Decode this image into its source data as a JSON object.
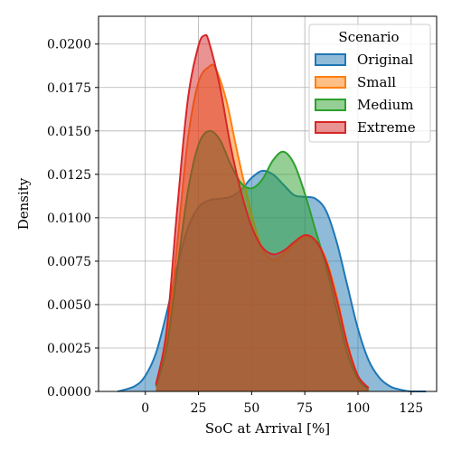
{
  "chart_data": {
    "type": "area",
    "chart_kind": "kde-density",
    "xlabel": "SoC at Arrival [%]",
    "ylabel": "Density",
    "xlim": [
      -22,
      137
    ],
    "ylim": [
      0,
      0.0216
    ],
    "x_ticks": [
      0,
      25,
      50,
      75,
      100,
      125
    ],
    "y_ticks": [
      0.0,
      0.0025,
      0.005,
      0.0075,
      0.01,
      0.0125,
      0.015,
      0.0175,
      0.02
    ],
    "x_tick_labels": [
      "0",
      "25",
      "50",
      "75",
      "100",
      "125"
    ],
    "y_tick_labels": [
      "0.0000",
      "0.0025",
      "0.0050",
      "0.0075",
      "0.0100",
      "0.0125",
      "0.0150",
      "0.0175",
      "0.0200"
    ],
    "grid": true,
    "legend": {
      "title": "Scenario",
      "placement": "top-right"
    },
    "series": [
      {
        "name": "Original",
        "color": "#1f77b4",
        "x": [
          -13,
          -5,
          0,
          5,
          10,
          15,
          20,
          25,
          30,
          35,
          40,
          45,
          50,
          55,
          60,
          65,
          70,
          75,
          80,
          85,
          90,
          95,
          100,
          105,
          110,
          115,
          120,
          125,
          132
        ],
        "y": [
          0.0,
          0.0003,
          0.0009,
          0.0022,
          0.0045,
          0.0072,
          0.0094,
          0.0106,
          0.011,
          0.0111,
          0.0112,
          0.0116,
          0.0123,
          0.0127,
          0.0125,
          0.0119,
          0.0113,
          0.0112,
          0.0111,
          0.0104,
          0.0086,
          0.0061,
          0.0036,
          0.0018,
          0.0008,
          0.0003,
          0.0001,
          0.0,
          0.0
        ]
      },
      {
        "name": "Small",
        "color": "#ff7f0e",
        "x": [
          5,
          10,
          15,
          20,
          25,
          30,
          33,
          38,
          42,
          45,
          50,
          55,
          60,
          65,
          70,
          75,
          80,
          85,
          90,
          95,
          100,
          105
        ],
        "y": [
          0.0003,
          0.0028,
          0.0085,
          0.0145,
          0.0178,
          0.0187,
          0.0186,
          0.0168,
          0.0145,
          0.0128,
          0.0102,
          0.0082,
          0.0076,
          0.0079,
          0.0085,
          0.0089,
          0.0087,
          0.0076,
          0.0055,
          0.0028,
          0.0009,
          0.0002
        ]
      },
      {
        "name": "Medium",
        "color": "#2ca02c",
        "x": [
          5,
          10,
          15,
          20,
          25,
          30,
          35,
          40,
          45,
          50,
          55,
          60,
          65,
          70,
          75,
          80,
          85,
          90,
          95,
          100,
          105
        ],
        "y": [
          0.0003,
          0.0025,
          0.007,
          0.0115,
          0.0142,
          0.015,
          0.0145,
          0.0131,
          0.012,
          0.0117,
          0.0122,
          0.0133,
          0.0138,
          0.0131,
          0.0114,
          0.0093,
          0.0072,
          0.0047,
          0.0022,
          0.0007,
          0.0001
        ]
      },
      {
        "name": "Extreme",
        "color": "#d62728",
        "x": [
          5,
          10,
          15,
          20,
          25,
          28,
          30,
          35,
          40,
          45,
          50,
          55,
          60,
          65,
          70,
          75,
          80,
          85,
          90,
          95,
          100,
          105
        ],
        "y": [
          0.0004,
          0.0035,
          0.0105,
          0.0168,
          0.0199,
          0.0205,
          0.0201,
          0.0176,
          0.0142,
          0.0115,
          0.0095,
          0.0083,
          0.0079,
          0.0081,
          0.0086,
          0.009,
          0.0087,
          0.0075,
          0.0053,
          0.0027,
          0.0009,
          0.0002
        ]
      }
    ]
  }
}
